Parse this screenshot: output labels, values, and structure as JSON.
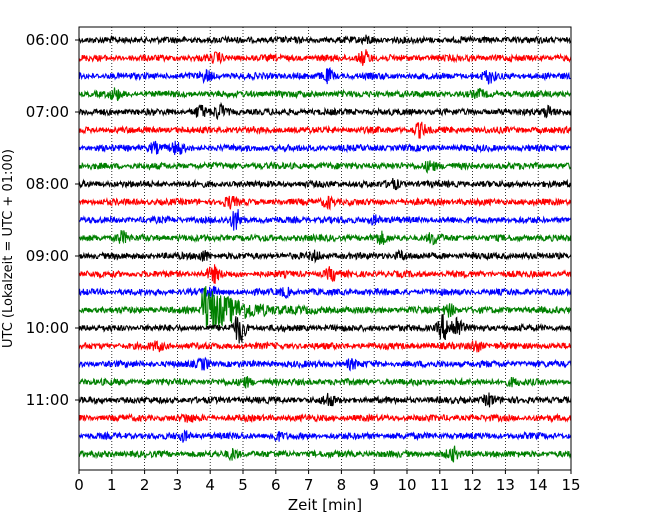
{
  "chart_data": {
    "type": "line",
    "title": "",
    "xlabel": "Zeit  [min]",
    "ylabel": "UTC (Lokalzeit = UTC + 01:00)",
    "xlim": [
      0,
      15
    ],
    "x_ticks": [
      "0",
      "1",
      "2",
      "3",
      "4",
      "5",
      "6",
      "7",
      "8",
      "9",
      "10",
      "11",
      "12",
      "13",
      "14",
      "15"
    ],
    "y_ticks": [
      {
        "label": "06:00",
        "row": 0
      },
      {
        "label": "07:00",
        "row": 4
      },
      {
        "label": "08:00",
        "row": 8
      },
      {
        "label": "09:00",
        "row": 12
      },
      {
        "label": "10:00",
        "row": 16
      },
      {
        "label": "11:00",
        "row": 20
      }
    ],
    "grid": "vertical dotted",
    "row_interval_min": 15,
    "row_colors": [
      "#000000",
      "#ff0000",
      "#0000ff",
      "#008000"
    ],
    "rows": [
      {
        "start": "06:00",
        "events": [
          {
            "t": 8.8,
            "amp": 0.3
          }
        ]
      },
      {
        "start": "06:15",
        "events": [
          {
            "t": 8.7,
            "amp": 0.8
          },
          {
            "t": 4.2,
            "amp": 0.4
          }
        ]
      },
      {
        "start": "06:30",
        "events": [
          {
            "t": 3.9,
            "amp": 0.5
          },
          {
            "t": 7.6,
            "amp": 0.6
          },
          {
            "t": 12.5,
            "amp": 0.6
          }
        ]
      },
      {
        "start": "06:45",
        "events": [
          {
            "t": 1.1,
            "amp": 0.5
          },
          {
            "t": 12.2,
            "amp": 0.3
          }
        ]
      },
      {
        "start": "07:00",
        "events": [
          {
            "t": 3.7,
            "amp": 0.6
          },
          {
            "t": 4.3,
            "amp": 0.7
          },
          {
            "t": 14.3,
            "amp": 0.6
          }
        ]
      },
      {
        "start": "07:15",
        "events": [
          {
            "t": 10.4,
            "amp": 0.7
          }
        ]
      },
      {
        "start": "07:30",
        "events": [
          {
            "t": 2.3,
            "amp": 0.5
          },
          {
            "t": 3.0,
            "amp": 0.6
          }
        ]
      },
      {
        "start": "07:45",
        "events": [
          {
            "t": 10.7,
            "amp": 0.6
          }
        ]
      },
      {
        "start": "08:00",
        "events": [
          {
            "t": 9.6,
            "amp": 0.4
          }
        ]
      },
      {
        "start": "08:15",
        "events": [
          {
            "t": 4.6,
            "amp": 0.5
          },
          {
            "t": 7.6,
            "amp": 0.6
          }
        ]
      },
      {
        "start": "08:30",
        "events": [
          {
            "t": 4.8,
            "amp": 1.1
          },
          {
            "t": 9.0,
            "amp": 0.4
          }
        ]
      },
      {
        "start": "08:45",
        "events": [
          {
            "t": 1.3,
            "amp": 0.6
          },
          {
            "t": 9.2,
            "amp": 0.5
          },
          {
            "t": 10.8,
            "amp": 0.5
          }
        ]
      },
      {
        "start": "09:00",
        "events": [
          {
            "t": 3.8,
            "amp": 0.5
          },
          {
            "t": 7.2,
            "amp": 0.4
          },
          {
            "t": 9.8,
            "amp": 0.4
          }
        ]
      },
      {
        "start": "09:15",
        "events": [
          {
            "t": 4.1,
            "amp": 0.8
          },
          {
            "t": 7.7,
            "amp": 0.6
          }
        ]
      },
      {
        "start": "09:30",
        "events": [
          {
            "t": 4.0,
            "amp": 0.5
          },
          {
            "t": 6.3,
            "amp": 0.4
          }
        ]
      },
      {
        "start": "09:45",
        "events": [
          {
            "t": 3.9,
            "amp": 2.6,
            "long": true
          },
          {
            "t": 11.3,
            "amp": 0.6
          }
        ]
      },
      {
        "start": "10:00",
        "events": [
          {
            "t": 4.9,
            "amp": 1.6
          },
          {
            "t": 11.1,
            "amp": 1.3
          },
          {
            "t": 11.5,
            "amp": 1.2
          }
        ]
      },
      {
        "start": "10:15",
        "events": [
          {
            "t": 12.1,
            "amp": 0.6
          },
          {
            "t": 2.4,
            "amp": 0.4
          }
        ]
      },
      {
        "start": "10:30",
        "events": [
          {
            "t": 3.8,
            "amp": 0.5
          },
          {
            "t": 8.3,
            "amp": 0.4
          }
        ]
      },
      {
        "start": "10:45",
        "events": [
          {
            "t": 5.1,
            "amp": 0.4
          },
          {
            "t": 13.2,
            "amp": 0.3
          }
        ]
      },
      {
        "start": "11:00",
        "events": [
          {
            "t": 7.6,
            "amp": 0.6
          },
          {
            "t": 12.5,
            "amp": 0.6
          }
        ]
      },
      {
        "start": "11:15",
        "events": [
          {
            "t": 3.3,
            "amp": 0.3
          }
        ]
      },
      {
        "start": "11:30",
        "events": [
          {
            "t": 3.2,
            "amp": 0.4
          },
          {
            "t": 6.0,
            "amp": 0.4
          }
        ]
      },
      {
        "start": "11:45",
        "events": [
          {
            "t": 4.7,
            "amp": 0.5
          },
          {
            "t": 11.4,
            "amp": 0.6
          }
        ]
      }
    ]
  }
}
